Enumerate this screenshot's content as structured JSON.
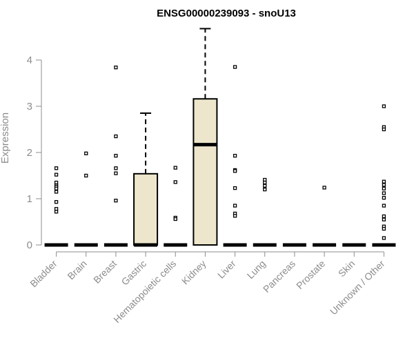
{
  "chart_data": {
    "type": "box",
    "title": "ENSG00000239093 - snoU13",
    "xlabel": "",
    "ylabel": "Expression",
    "ylim": [
      0,
      4.7
    ],
    "yticks": [
      0,
      1,
      2,
      3,
      4
    ],
    "categories": [
      "Bladder",
      "Brain",
      "Breast",
      "Gastric",
      "Hematopoietic cells",
      "Kidney",
      "Liver",
      "Lung",
      "Pancreas",
      "Prostate",
      "Skin",
      "Unknown / Other"
    ],
    "box_fill": "#ede6cc",
    "boxes": [
      {
        "category": "Bladder",
        "min": 0,
        "q1": 0,
        "median": 0,
        "q3": 0,
        "max": 0,
        "outliers": [
          1.66,
          1.52,
          1.35,
          1.29,
          1.26,
          1.22,
          1.15,
          0.93,
          0.78,
          0.72
        ]
      },
      {
        "category": "Brain",
        "min": 0,
        "q1": 0,
        "median": 0,
        "q3": 0,
        "max": 0,
        "outliers": [
          1.98,
          1.5
        ]
      },
      {
        "category": "Breast",
        "min": 0,
        "q1": 0,
        "median": 0,
        "q3": 0,
        "max": 0,
        "outliers": [
          3.84,
          2.35,
          1.93,
          1.66,
          1.55,
          0.96
        ]
      },
      {
        "category": "Gastric",
        "min": 0,
        "q1": 0,
        "median": 0,
        "q3": 1.54,
        "max": 2.85,
        "outliers": []
      },
      {
        "category": "Hematopoietic cells",
        "min": 0,
        "q1": 0,
        "median": 0,
        "q3": 0,
        "max": 0,
        "outliers": [
          1.67,
          1.36,
          0.59,
          0.56
        ]
      },
      {
        "category": "Kidney",
        "min": 0,
        "q1": 0,
        "median": 2.17,
        "q3": 3.16,
        "max": 4.68,
        "outliers": []
      },
      {
        "category": "Liver",
        "min": 0,
        "q1": 0,
        "median": 0,
        "q3": 0,
        "max": 0,
        "outliers": [
          3.85,
          1.93,
          1.62,
          1.6,
          1.23,
          0.85,
          0.68,
          0.63
        ]
      },
      {
        "category": "Lung",
        "min": 0,
        "q1": 0,
        "median": 0,
        "q3": 0,
        "max": 0,
        "outliers": [
          1.41,
          1.35,
          1.28,
          1.2
        ]
      },
      {
        "category": "Pancreas",
        "min": 0,
        "q1": 0,
        "median": 0,
        "q3": 0,
        "max": 0,
        "outliers": []
      },
      {
        "category": "Prostate",
        "min": 0,
        "q1": 0,
        "median": 0,
        "q3": 0,
        "max": 0,
        "outliers": [
          1.24
        ]
      },
      {
        "category": "Skin",
        "min": 0,
        "q1": 0,
        "median": 0,
        "q3": 0,
        "max": 0,
        "outliers": []
      },
      {
        "category": "Unknown / Other",
        "min": 0,
        "q1": 0,
        "median": 0,
        "q3": 0,
        "max": 0,
        "outliers": [
          3.0,
          2.55,
          2.5,
          1.37,
          1.3,
          1.22,
          1.12,
          1.02,
          0.85,
          0.62,
          0.55,
          0.4,
          0.35,
          0.15
        ]
      }
    ]
  }
}
